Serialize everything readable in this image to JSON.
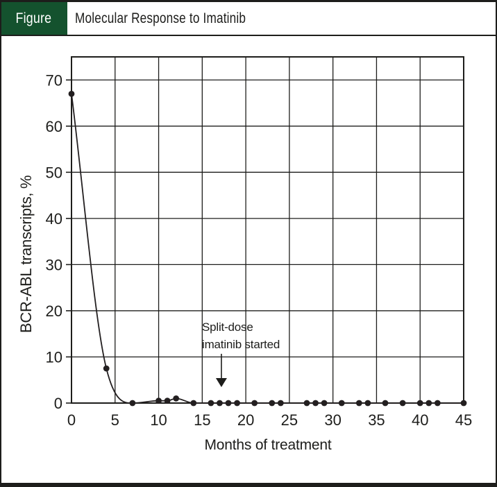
{
  "figure": {
    "badge_label": "Figure",
    "title": "Molecular Response to Imatinib"
  },
  "colors": {
    "ink": "#1d1d1b",
    "line": "#231f20",
    "badge_green": "#14522e",
    "background": "#ffffff"
  },
  "chart_data": {
    "type": "line",
    "title": "Molecular Response to Imatinib",
    "xlabel": "Months of treatment",
    "ylabel": "BCR-ABL transcripts, %",
    "xlim": [
      0,
      45
    ],
    "ylim": [
      0,
      75
    ],
    "x_ticks": [
      0,
      5,
      10,
      15,
      20,
      25,
      30,
      35,
      40,
      45
    ],
    "y_ticks": [
      0,
      10,
      20,
      30,
      40,
      50,
      60,
      70
    ],
    "grid": true,
    "legend": "none",
    "series": [
      {
        "name": "BCR-ABL transcripts, %",
        "x": [
          0,
          4,
          7,
          10,
          11,
          12,
          14,
          16,
          17,
          18,
          19,
          21,
          23,
          24,
          27,
          28,
          29,
          31,
          33,
          34,
          36,
          38,
          40,
          41,
          42,
          45
        ],
        "y": [
          67,
          7.5,
          0,
          0.5,
          0.5,
          1,
          0,
          0,
          0,
          0,
          0,
          0,
          0,
          0,
          0,
          0,
          0,
          0,
          0,
          0,
          0,
          0,
          0,
          0,
          0,
          0
        ]
      }
    ],
    "annotation": {
      "line1": "Split-dose",
      "line2": "imatinib started",
      "arrow_month": 17.2
    }
  }
}
